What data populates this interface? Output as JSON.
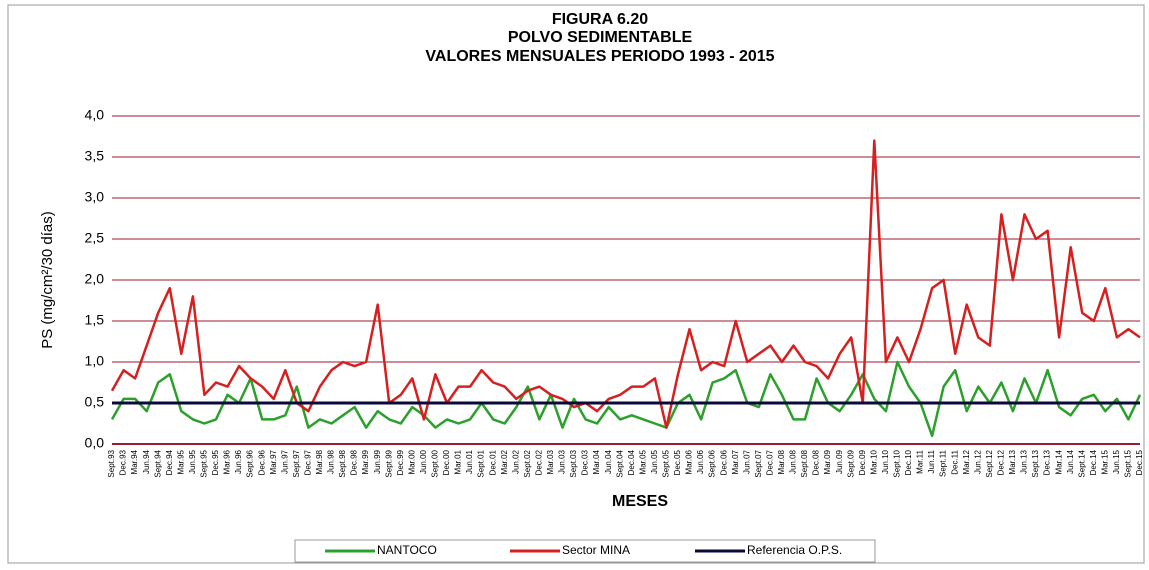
{
  "chart_data": {
    "type": "line",
    "title": [
      "FIGURA 6.20",
      "POLVO SEDIMENTABLE",
      "VALORES MENSUALES  PERIODO 1993 - 2015"
    ],
    "x_label": "MESES",
    "y_label": "PS (mg/cm²/30 días)",
    "categories": [
      "Sept.93",
      "Dec.93",
      "Mar.94",
      "Jun.94",
      "Sept.94",
      "Dec.94",
      "Mar.95",
      "Jun.95",
      "Sept.95",
      "Dec.95",
      "Mar.96",
      "Jun.96",
      "Sept.96",
      "Dec.96",
      "Mar.97",
      "Jun.97",
      "Sept.97",
      "Dec.97",
      "Mar.98",
      "Jun.98",
      "Sept.98",
      "Dec.98",
      "Mar.99",
      "Jun.99",
      "Sept.99",
      "Dec.99",
      "Mar.00",
      "Jun.00",
      "Sept.00",
      "Dec.00",
      "Mar.01",
      "Jun.01",
      "Sept.01",
      "Dec.01",
      "Mar.02",
      "Jun.02",
      "Sept.02",
      "Dec.02",
      "Mar.03",
      "Jun.03",
      "Sept.03",
      "Dec.03",
      "Mar.04",
      "Jun.04",
      "Sept.04",
      "Dec.04",
      "Mar.05",
      "Jun.05",
      "Sept.05",
      "Dec.05",
      "Mar.06",
      "Jun.06",
      "Sept.06",
      "Dec.06",
      "Mar.07",
      "Jun.07",
      "Sept.07",
      "Dec.07",
      "Mar.08",
      "Jun.08",
      "Sept.08",
      "Dec.08",
      "Mar.09",
      "Jun.09",
      "Sept.09",
      "Dec.09",
      "Mar.10",
      "Jun.10",
      "Sept.10",
      "Dec.10",
      "Mar.11",
      "Jun.11",
      "Sept.11",
      "Dec.11",
      "Mar.12",
      "Jun.12",
      "Sept.12",
      "Dec.12",
      "Mar.13",
      "Jun.13",
      "Sept.13",
      "Dec.13",
      "Mar.14",
      "Jun.14",
      "Sept.14",
      "Dec.14",
      "Mar.15",
      "Jun.15",
      "Sept.15",
      "Dec.15"
    ],
    "series": [
      {
        "name": "NANTOCO",
        "color": "#2ca02c",
        "values": [
          0.3,
          0.55,
          0.55,
          0.4,
          0.75,
          0.85,
          0.4,
          0.3,
          0.25,
          0.3,
          0.6,
          0.5,
          0.8,
          0.3,
          0.3,
          0.35,
          0.7,
          0.2,
          0.3,
          0.25,
          0.35,
          0.45,
          0.2,
          0.4,
          0.3,
          0.25,
          0.45,
          0.35,
          0.2,
          0.3,
          0.25,
          0.3,
          0.5,
          0.3,
          0.25,
          0.45,
          0.7,
          0.3,
          0.6,
          0.2,
          0.55,
          0.3,
          0.25,
          0.45,
          0.3,
          0.35,
          0.3,
          0.25,
          0.2,
          0.5,
          0.6,
          0.3,
          0.75,
          0.8,
          0.9,
          0.5,
          0.45,
          0.85,
          0.6,
          0.3,
          0.3,
          0.8,
          0.5,
          0.4,
          0.6,
          0.85,
          0.55,
          0.4,
          1.0,
          0.7,
          0.5,
          0.1,
          0.7,
          0.9,
          0.4,
          0.7,
          0.5,
          0.75,
          0.4,
          0.8,
          0.5,
          0.9,
          0.45,
          0.35,
          0.55,
          0.6,
          0.4,
          0.55,
          0.3,
          0.6
        ]
      },
      {
        "name": "Sector MINA",
        "color": "#d62020",
        "values": [
          0.65,
          0.9,
          0.8,
          1.2,
          1.6,
          1.9,
          1.1,
          1.8,
          0.6,
          0.75,
          0.7,
          0.95,
          0.8,
          0.7,
          0.55,
          0.9,
          0.5,
          0.4,
          0.7,
          0.9,
          1.0,
          0.95,
          1.0,
          1.7,
          0.5,
          0.6,
          0.8,
          0.3,
          0.85,
          0.5,
          0.7,
          0.7,
          0.9,
          0.75,
          0.7,
          0.55,
          0.65,
          0.7,
          0.6,
          0.55,
          0.45,
          0.5,
          0.4,
          0.55,
          0.6,
          0.7,
          0.7,
          0.8,
          0.2,
          0.85,
          1.4,
          0.9,
          1.0,
          0.95,
          1.5,
          1.0,
          1.1,
          1.2,
          1.0,
          1.2,
          1.0,
          0.95,
          0.8,
          1.1,
          1.3,
          0.5,
          3.7,
          1.0,
          1.3,
          1.0,
          1.4,
          1.9,
          2.0,
          1.1,
          1.7,
          1.3,
          1.2,
          2.8,
          2.0,
          2.8,
          2.5,
          2.6,
          1.3,
          2.4,
          1.6,
          1.5,
          1.9,
          1.3,
          1.4,
          1.3
        ]
      }
    ],
    "reference": {
      "name": "Referencia O.P.S.",
      "color": "#0a0a3a",
      "value": 0.5
    },
    "ylim": [
      0,
      4
    ],
    "yticks": [
      {
        "value": 0,
        "label": "0,0"
      },
      {
        "value": 0.5,
        "label": "0,5"
      },
      {
        "value": 1,
        "label": "1,0"
      },
      {
        "value": 1.5,
        "label": "1,5"
      },
      {
        "value": 2,
        "label": "2,0"
      },
      {
        "value": 2.5,
        "label": "2,5"
      },
      {
        "value": 3,
        "label": "3,0"
      },
      {
        "value": 3.5,
        "label": "3,5"
      },
      {
        "value": 4,
        "label": "4,0"
      }
    ],
    "grid": true,
    "grid_color": "#9b1b30",
    "legend": "bottom"
  }
}
